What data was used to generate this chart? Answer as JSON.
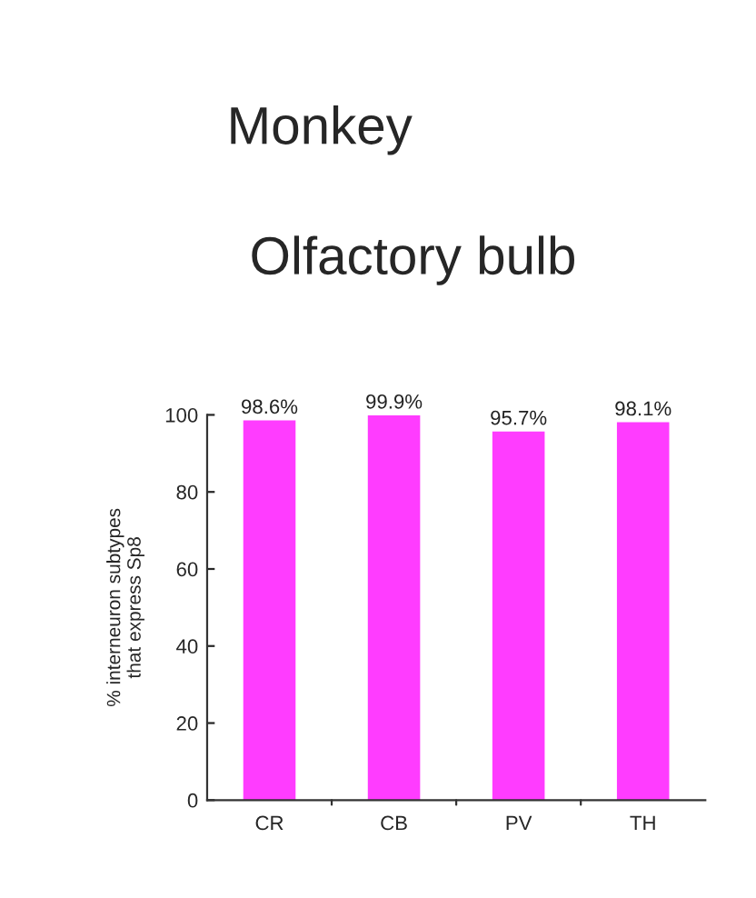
{
  "chart_data": {
    "type": "bar",
    "title": "Monkey",
    "subtitle": "Olfactory bulb",
    "ylabel": "% interneuron subtypes\nthat express Sp8",
    "categories": [
      "CR",
      "CB",
      "PV",
      "TH"
    ],
    "values": [
      98.6,
      99.9,
      95.7,
      98.1
    ],
    "value_labels": [
      "98.6%",
      "99.9%",
      "95.7%",
      "98.1%"
    ],
    "color": "#ff3cff",
    "ylim": [
      0,
      100
    ],
    "yticks": [
      0,
      20,
      40,
      60,
      80,
      100
    ],
    "grid": false,
    "legend": false
  }
}
